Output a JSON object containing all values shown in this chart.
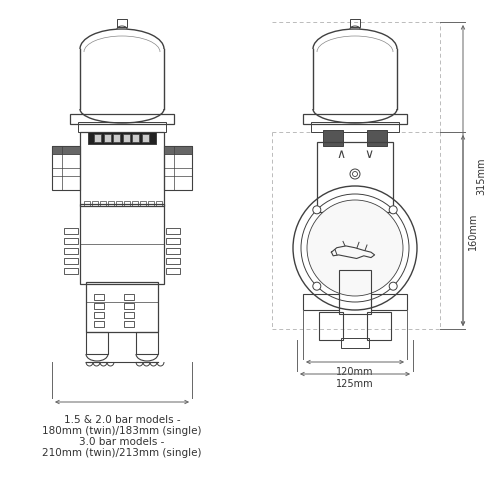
{
  "bg_color": "#ffffff",
  "line_color": "#404040",
  "dim_line_color": "#666666",
  "dot_line_color": "#bbbbbb",
  "dim_text_315": "315mm",
  "dim_text_160": "160mm",
  "dim_text_120": "120mm",
  "dim_text_125": "125mm",
  "bottom_text_line1": "1.5 & 2.0 bar models -",
  "bottom_text_line2": "180mm (twin)/183mm (single)",
  "bottom_text_line3": "3.0 bar models -",
  "bottom_text_line4": "210mm (twin)/213mm (single)",
  "font_size_dim": 7.0,
  "font_size_bottom": 7.5
}
